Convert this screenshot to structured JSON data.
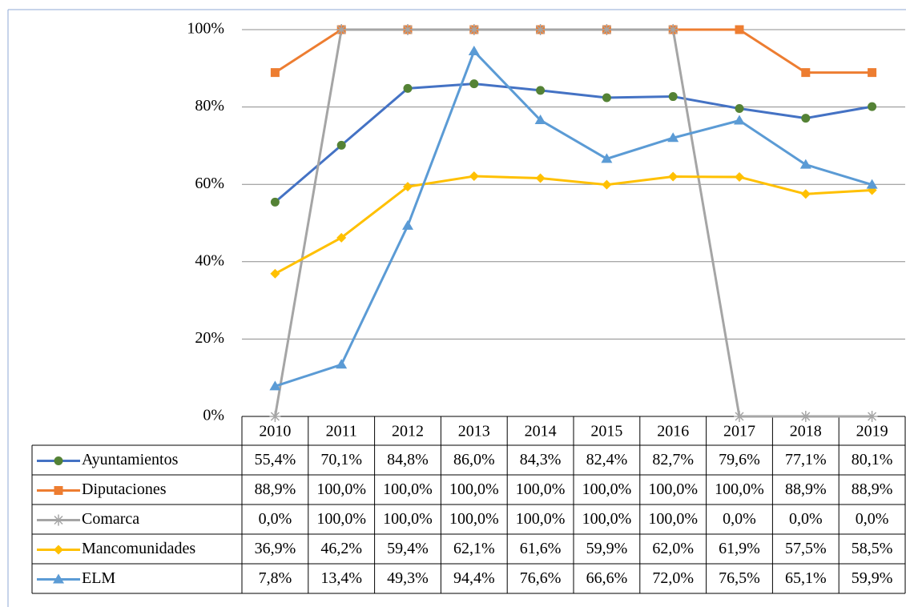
{
  "chart_data": {
    "type": "line",
    "categories": [
      "2010",
      "2011",
      "2012",
      "2013",
      "2014",
      "2015",
      "2016",
      "2017",
      "2018",
      "2019"
    ],
    "ylim": [
      0,
      100
    ],
    "yticks": [
      {
        "value": 0,
        "label": "0%"
      },
      {
        "value": 20,
        "label": "20%"
      },
      {
        "value": 40,
        "label": "40%"
      },
      {
        "value": 60,
        "label": "60%"
      },
      {
        "value": 80,
        "label": "80%"
      },
      {
        "value": 100,
        "label": "100%"
      }
    ],
    "grid": true,
    "series": [
      {
        "name": "Ayuntamientos",
        "color": "#4472c4",
        "marker": "circle",
        "marker_color": "#548235",
        "values": [
          55.4,
          70.1,
          84.8,
          86.0,
          84.3,
          82.4,
          82.7,
          79.6,
          77.1,
          80.1
        ],
        "value_labels": [
          "55,4%",
          "70,1%",
          "84,8%",
          "86,0%",
          "84,3%",
          "82,4%",
          "82,7%",
          "79,6%",
          "77,1%",
          "80,1%"
        ]
      },
      {
        "name": "Diputaciones",
        "color": "#ed7d31",
        "marker": "square",
        "marker_color": "#ed7d31",
        "values": [
          88.9,
          100,
          100,
          100,
          100,
          100,
          100,
          100,
          88.9,
          88.9
        ],
        "value_labels": [
          "88,9%",
          "100,0%",
          "100,0%",
          "100,0%",
          "100,0%",
          "100,0%",
          "100,0%",
          "100,0%",
          "88,9%",
          "88,9%"
        ]
      },
      {
        "name": "Comarca",
        "color": "#a5a5a5",
        "marker": "star",
        "marker_color": "#a5a5a5",
        "values": [
          0,
          100,
          100,
          100,
          100,
          100,
          100,
          0,
          0,
          0
        ],
        "value_labels": [
          "0,0%",
          "100,0%",
          "100,0%",
          "100,0%",
          "100,0%",
          "100,0%",
          "100,0%",
          "0,0%",
          "0,0%",
          "0,0%"
        ]
      },
      {
        "name": "Mancomunidades",
        "color": "#ffc000",
        "marker": "diamond",
        "marker_color": "#ffc000",
        "values": [
          36.9,
          46.2,
          59.4,
          62.1,
          61.6,
          59.9,
          62.0,
          61.9,
          57.5,
          58.5
        ],
        "value_labels": [
          "36,9%",
          "46,2%",
          "59,4%",
          "62,1%",
          "61,6%",
          "59,9%",
          "62,0%",
          "61,9%",
          "57,5%",
          "58,5%"
        ]
      },
      {
        "name": "ELM",
        "color": "#5b9bd5",
        "marker": "triangle",
        "marker_color": "#5b9bd5",
        "values": [
          7.8,
          13.4,
          49.3,
          94.4,
          76.6,
          66.6,
          72.0,
          76.5,
          65.1,
          59.9
        ],
        "value_labels": [
          "7,8%",
          "13,4%",
          "49,3%",
          "94,4%",
          "76,6%",
          "66,6%",
          "72,0%",
          "76,5%",
          "65,1%",
          "59,9%"
        ]
      }
    ]
  }
}
